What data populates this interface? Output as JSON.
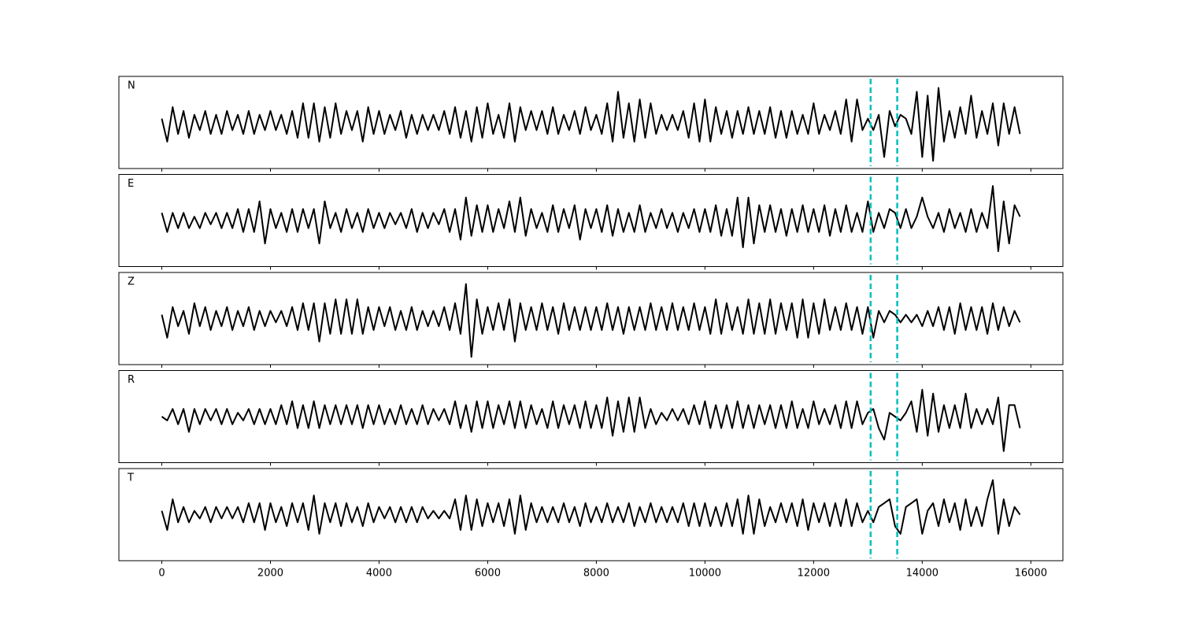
{
  "chart_data": {
    "type": "line",
    "x": [
      0,
      100,
      200,
      300,
      400,
      500,
      600,
      700,
      800,
      900,
      1000,
      1100,
      1200,
      1300,
      1400,
      1500,
      1600,
      1700,
      1800,
      1900,
      2000,
      2100,
      2200,
      2300,
      2400,
      2500,
      2600,
      2700,
      2800,
      2900,
      3000,
      3100,
      3200,
      3300,
      3400,
      3500,
      3600,
      3700,
      3800,
      3900,
      4000,
      4100,
      4200,
      4300,
      4400,
      4500,
      4600,
      4700,
      4800,
      4900,
      5000,
      5100,
      5200,
      5300,
      5400,
      5500,
      5600,
      5700,
      5800,
      5900,
      6000,
      6100,
      6200,
      6300,
      6400,
      6500,
      6600,
      6700,
      6800,
      6900,
      7000,
      7100,
      7200,
      7300,
      7400,
      7500,
      7600,
      7700,
      7800,
      7900,
      8000,
      8100,
      8200,
      8300,
      8400,
      8500,
      8600,
      8700,
      8800,
      8900,
      9000,
      9100,
      9200,
      9300,
      9400,
      9500,
      9600,
      9700,
      9800,
      9900,
      10000,
      10100,
      10200,
      10300,
      10400,
      10500,
      10600,
      10700,
      10800,
      10900,
      11000,
      11100,
      11200,
      11300,
      11400,
      11500,
      11600,
      11700,
      11800,
      11900,
      12000,
      12100,
      12200,
      12300,
      12400,
      12500,
      12600,
      12700,
      12800,
      12900,
      13000,
      13100,
      13200,
      13300,
      13400,
      13500,
      13600,
      13700,
      13800,
      13900,
      14000,
      14100,
      14200,
      14300,
      14400,
      14500,
      14600,
      14700,
      14800,
      14900,
      15000,
      15100,
      15200,
      15300,
      15400,
      15500,
      15600,
      15700,
      15800
    ],
    "series": [
      {
        "name": "N",
        "color": "#000000",
        "values": [
          0.1,
          -0.5,
          0.4,
          -0.3,
          0.3,
          -0.4,
          0.2,
          -0.2,
          0.3,
          -0.3,
          0.2,
          -0.3,
          0.3,
          -0.2,
          0.2,
          -0.3,
          0.3,
          -0.3,
          0.2,
          -0.2,
          0.3,
          -0.2,
          0.2,
          -0.3,
          0.3,
          -0.4,
          0.5,
          -0.4,
          0.5,
          -0.5,
          0.4,
          -0.4,
          0.5,
          -0.3,
          0.3,
          -0.2,
          0.3,
          -0.5,
          0.4,
          -0.3,
          0.3,
          -0.3,
          0.2,
          -0.2,
          0.3,
          -0.4,
          0.2,
          -0.3,
          0.2,
          -0.2,
          0.2,
          -0.2,
          0.3,
          -0.3,
          0.4,
          -0.4,
          0.3,
          -0.5,
          0.4,
          -0.4,
          0.5,
          -0.3,
          0.2,
          -0.4,
          0.5,
          -0.5,
          0.4,
          -0.2,
          0.3,
          -0.2,
          0.3,
          -0.3,
          0.4,
          -0.3,
          0.2,
          -0.2,
          0.3,
          -0.3,
          0.4,
          -0.2,
          0.2,
          -0.3,
          0.5,
          -0.5,
          0.8,
          -0.4,
          0.5,
          -0.5,
          0.6,
          -0.4,
          0.5,
          -0.3,
          0.2,
          -0.2,
          0.2,
          -0.2,
          0.3,
          -0.4,
          0.5,
          -0.5,
          0.6,
          -0.5,
          0.4,
          -0.3,
          0.3,
          -0.4,
          0.3,
          -0.3,
          0.4,
          -0.3,
          0.3,
          -0.3,
          0.4,
          -0.4,
          0.3,
          -0.4,
          0.3,
          -0.3,
          0.2,
          -0.3,
          0.5,
          -0.3,
          0.2,
          -0.2,
          0.3,
          -0.3,
          0.6,
          -0.5,
          0.6,
          -0.2,
          0.1,
          -0.2,
          0.2,
          -0.9,
          0.3,
          -0.1,
          0.2,
          0.1,
          -0.3,
          0.8,
          -0.9,
          0.7,
          -1.0,
          0.9,
          -0.5,
          0.3,
          -0.4,
          0.4,
          -0.3,
          0.7,
          -0.4,
          0.3,
          -0.3,
          0.5,
          -0.6,
          0.5,
          -0.3,
          0.4,
          -0.3
        ]
      },
      {
        "name": "E",
        "color": "#000000",
        "values": [
          0.2,
          -0.3,
          0.2,
          -0.2,
          0.2,
          -0.2,
          0.1,
          -0.2,
          0.2,
          -0.1,
          0.2,
          -0.2,
          0.2,
          -0.2,
          0.3,
          -0.3,
          0.3,
          -0.3,
          0.5,
          -0.6,
          0.3,
          -0.2,
          0.2,
          -0.3,
          0.3,
          -0.3,
          0.3,
          -0.2,
          0.3,
          -0.6,
          0.5,
          -0.2,
          0.2,
          -0.3,
          0.3,
          -0.2,
          0.2,
          -0.3,
          0.3,
          -0.2,
          0.2,
          -0.2,
          0.2,
          -0.1,
          0.2,
          -0.2,
          0.3,
          -0.3,
          0.2,
          -0.2,
          0.2,
          -0.1,
          0.3,
          -0.3,
          0.3,
          -0.5,
          0.6,
          -0.4,
          0.4,
          -0.3,
          0.4,
          -0.3,
          0.3,
          -0.2,
          0.5,
          -0.3,
          0.6,
          -0.4,
          0.3,
          -0.2,
          0.2,
          -0.3,
          0.4,
          -0.3,
          0.3,
          -0.2,
          0.4,
          -0.5,
          0.3,
          -0.2,
          0.3,
          -0.3,
          0.4,
          -0.4,
          0.3,
          -0.3,
          0.2,
          -0.3,
          0.4,
          -0.3,
          0.2,
          -0.2,
          0.3,
          -0.2,
          0.2,
          -0.3,
          0.2,
          -0.2,
          0.3,
          -0.3,
          0.3,
          -0.3,
          0.4,
          -0.4,
          0.3,
          -0.4,
          0.6,
          -0.7,
          0.6,
          -0.6,
          0.4,
          -0.3,
          0.4,
          -0.3,
          0.3,
          -0.4,
          0.3,
          -0.3,
          0.4,
          -0.3,
          0.3,
          -0.3,
          0.4,
          -0.4,
          0.3,
          -0.3,
          0.4,
          -0.3,
          0.2,
          -0.3,
          0.5,
          -0.3,
          0.2,
          -0.2,
          0.3,
          0.2,
          -0.2,
          0.3,
          -0.2,
          0.1,
          0.6,
          0.1,
          -0.2,
          0.2,
          -0.3,
          0.3,
          -0.2,
          0.2,
          -0.3,
          0.3,
          -0.3,
          0.2,
          -0.2,
          0.9,
          -0.8,
          0.5,
          -0.6,
          0.4,
          0.1
        ]
      },
      {
        "name": "Z",
        "color": "#000000",
        "values": [
          0.1,
          -0.5,
          0.3,
          -0.2,
          0.2,
          -0.4,
          0.4,
          -0.2,
          0.3,
          -0.3,
          0.2,
          -0.2,
          0.3,
          -0.3,
          0.2,
          -0.2,
          0.3,
          -0.3,
          0.2,
          -0.2,
          0.2,
          -0.1,
          0.2,
          -0.2,
          0.3,
          -0.3,
          0.4,
          -0.3,
          0.4,
          -0.6,
          0.4,
          -0.4,
          0.5,
          -0.4,
          0.5,
          -0.4,
          0.5,
          -0.4,
          0.3,
          -0.3,
          0.3,
          -0.2,
          0.3,
          -0.3,
          0.2,
          -0.3,
          0.3,
          -0.3,
          0.2,
          -0.2,
          0.2,
          -0.2,
          0.3,
          -0.3,
          0.4,
          -0.4,
          0.9,
          -1.0,
          0.5,
          -0.4,
          0.3,
          -0.3,
          0.4,
          -0.3,
          0.5,
          -0.6,
          0.4,
          -0.3,
          0.3,
          -0.3,
          0.4,
          -0.3,
          0.3,
          -0.4,
          0.4,
          -0.3,
          0.3,
          -0.3,
          0.3,
          -0.3,
          0.3,
          -0.3,
          0.4,
          -0.3,
          0.3,
          -0.4,
          0.3,
          -0.3,
          0.3,
          -0.3,
          0.4,
          -0.3,
          0.3,
          -0.3,
          0.4,
          -0.3,
          0.3,
          -0.3,
          0.4,
          -0.3,
          0.3,
          -0.4,
          0.5,
          -0.4,
          0.4,
          -0.3,
          0.3,
          -0.4,
          0.5,
          -0.4,
          0.4,
          -0.4,
          0.5,
          -0.4,
          0.4,
          -0.3,
          0.4,
          -0.5,
          0.5,
          -0.5,
          0.4,
          -0.4,
          0.5,
          -0.3,
          0.3,
          -0.3,
          0.4,
          -0.3,
          0.3,
          -0.4,
          0.3,
          -0.5,
          0.2,
          -0.1,
          0.2,
          0.1,
          -0.1,
          0.1,
          -0.1,
          0.1,
          -0.2,
          0.2,
          -0.2,
          0.3,
          -0.3,
          0.3,
          -0.4,
          0.4,
          -0.3,
          0.3,
          -0.3,
          0.3,
          -0.4,
          0.4,
          -0.3,
          0.3,
          -0.2,
          0.2,
          -0.1
        ]
      },
      {
        "name": "R",
        "color": "#000000",
        "values": [
          0.0,
          -0.1,
          0.2,
          -0.2,
          0.2,
          -0.4,
          0.2,
          -0.2,
          0.2,
          -0.1,
          0.2,
          -0.2,
          0.2,
          -0.2,
          0.1,
          -0.1,
          0.2,
          -0.2,
          0.2,
          -0.2,
          0.2,
          -0.2,
          0.3,
          -0.2,
          0.4,
          -0.3,
          0.3,
          -0.3,
          0.4,
          -0.3,
          0.3,
          -0.2,
          0.3,
          -0.2,
          0.3,
          -0.2,
          0.3,
          -0.3,
          0.3,
          -0.2,
          0.3,
          -0.2,
          0.2,
          -0.2,
          0.3,
          -0.2,
          0.2,
          -0.2,
          0.3,
          -0.2,
          0.2,
          -0.1,
          0.2,
          -0.2,
          0.4,
          -0.3,
          0.3,
          -0.4,
          0.4,
          -0.3,
          0.4,
          -0.3,
          0.3,
          -0.2,
          0.4,
          -0.3,
          0.4,
          -0.3,
          0.3,
          -0.2,
          0.2,
          -0.3,
          0.4,
          -0.3,
          0.3,
          -0.2,
          0.3,
          -0.3,
          0.4,
          -0.3,
          0.3,
          -0.3,
          0.5,
          -0.5,
          0.4,
          -0.4,
          0.5,
          -0.4,
          0.5,
          -0.3,
          0.2,
          -0.2,
          0.1,
          -0.1,
          0.2,
          -0.1,
          0.2,
          -0.2,
          0.3,
          -0.2,
          0.4,
          -0.3,
          0.3,
          -0.3,
          0.3,
          -0.3,
          0.4,
          -0.3,
          0.3,
          -0.3,
          0.3,
          -0.2,
          0.3,
          -0.3,
          0.3,
          -0.3,
          0.4,
          -0.3,
          0.2,
          -0.3,
          0.4,
          -0.2,
          0.2,
          -0.2,
          0.3,
          -0.3,
          0.4,
          -0.3,
          0.4,
          -0.2,
          0.1,
          0.2,
          -0.3,
          -0.6,
          0.1,
          0.0,
          -0.1,
          0.1,
          0.4,
          -0.4,
          0.7,
          -0.5,
          0.6,
          -0.4,
          0.3,
          -0.3,
          0.3,
          -0.3,
          0.6,
          -0.3,
          0.2,
          -0.2,
          0.2,
          -0.2,
          0.5,
          -0.9,
          0.3,
          0.3,
          -0.3
        ]
      },
      {
        "name": "T",
        "color": "#000000",
        "values": [
          0.1,
          -0.4,
          0.4,
          -0.2,
          0.2,
          -0.2,
          0.1,
          -0.1,
          0.2,
          -0.2,
          0.2,
          -0.1,
          0.2,
          -0.1,
          0.2,
          -0.2,
          0.3,
          -0.2,
          0.3,
          -0.4,
          0.3,
          -0.2,
          0.2,
          -0.3,
          0.3,
          -0.2,
          0.3,
          -0.4,
          0.5,
          -0.5,
          0.3,
          -0.2,
          0.3,
          -0.3,
          0.3,
          -0.2,
          0.2,
          -0.3,
          0.3,
          -0.2,
          0.2,
          -0.1,
          0.2,
          -0.2,
          0.2,
          -0.2,
          0.2,
          -0.2,
          0.2,
          -0.1,
          0.1,
          -0.1,
          0.1,
          -0.1,
          0.4,
          -0.4,
          0.5,
          -0.4,
          0.4,
          -0.3,
          0.3,
          -0.2,
          0.3,
          -0.3,
          0.4,
          -0.5,
          0.5,
          -0.4,
          0.3,
          -0.2,
          0.2,
          -0.2,
          0.2,
          -0.2,
          0.3,
          -0.2,
          0.2,
          -0.3,
          0.3,
          -0.2,
          0.2,
          -0.2,
          0.3,
          -0.2,
          0.2,
          -0.2,
          0.3,
          -0.3,
          0.2,
          -0.2,
          0.3,
          -0.2,
          0.2,
          -0.2,
          0.2,
          -0.2,
          0.3,
          -0.3,
          0.3,
          -0.3,
          0.3,
          -0.3,
          0.2,
          -0.3,
          0.3,
          -0.3,
          0.4,
          -0.5,
          0.5,
          -0.5,
          0.4,
          -0.3,
          0.2,
          -0.2,
          0.3,
          -0.2,
          0.3,
          -0.3,
          0.4,
          -0.4,
          0.3,
          -0.2,
          0.3,
          -0.3,
          0.3,
          -0.3,
          0.4,
          -0.3,
          0.3,
          -0.2,
          0.1,
          -0.2,
          0.2,
          0.3,
          0.4,
          -0.3,
          -0.5,
          0.2,
          0.3,
          0.4,
          -0.5,
          0.1,
          0.3,
          -0.3,
          0.4,
          -0.2,
          0.3,
          -0.4,
          0.4,
          -0.3,
          0.2,
          -0.3,
          0.4,
          0.9,
          -0.5,
          0.4,
          -0.3,
          0.2,
          0.0
        ]
      }
    ],
    "xlim": [
      -790,
      16590
    ],
    "xticks": [
      0,
      2000,
      4000,
      6000,
      8000,
      10000,
      12000,
      14000,
      16000
    ],
    "ylim": [
      -1.2,
      1.2
    ],
    "vlines": [
      13050,
      13540
    ],
    "vline_color": "#00bfbf"
  }
}
